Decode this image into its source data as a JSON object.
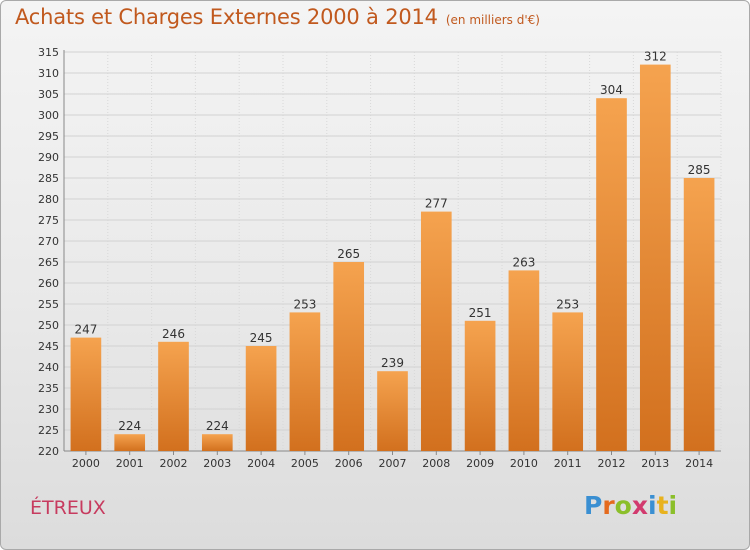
{
  "chart_data": {
    "type": "bar",
    "title": "Achats et Charges Externes 2000 à 2014",
    "subtitle": "(en milliers d'€)",
    "categories": [
      "2000",
      "2001",
      "2002",
      "2003",
      "2004",
      "2005",
      "2006",
      "2007",
      "2008",
      "2009",
      "2010",
      "2011",
      "2012",
      "2013",
      "2014"
    ],
    "values": [
      247,
      224,
      246,
      224,
      245,
      253,
      265,
      239,
      277,
      251,
      263,
      253,
      304,
      312,
      285
    ],
    "ylim": [
      220,
      315
    ],
    "y_ticks": [
      220,
      225,
      230,
      235,
      240,
      245,
      250,
      255,
      260,
      265,
      270,
      275,
      280,
      285,
      290,
      295,
      300,
      305,
      310,
      315
    ],
    "grid": true,
    "legend": "none",
    "bar_color_top": "#f5a34f",
    "bar_color_bottom": "#d2701e"
  },
  "footer": {
    "commune": "ÉTREUX",
    "logo_text": "Proxiti",
    "logo_colors": [
      "#3a8fd2",
      "#e46a1e",
      "#8bbf2a",
      "#d23a6e",
      "#3a8fd2",
      "#e8b21e",
      "#8bbf2a"
    ]
  }
}
